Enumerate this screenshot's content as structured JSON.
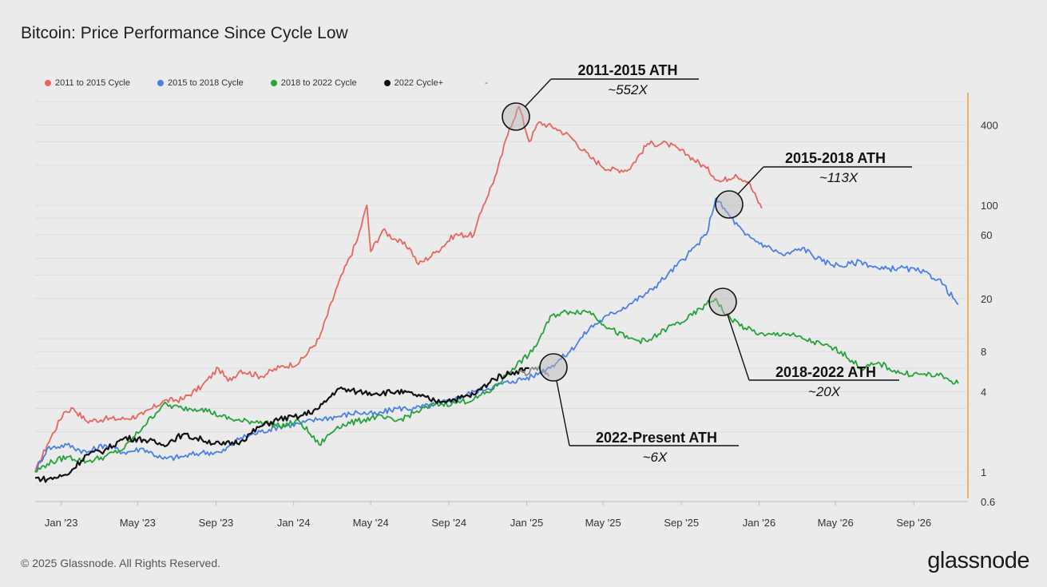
{
  "page": {
    "title": "Bitcoin: Price Performance Since Cycle Low",
    "footer": "© 2025 Glassnode. All Rights Reserved.",
    "brand": "glassnode"
  },
  "legend": {
    "items": [
      {
        "label": "2011 to 2015 Cycle",
        "color": "#e8655f"
      },
      {
        "label": "2015 to 2018 Cycle",
        "color": "#4a7fe6"
      },
      {
        "label": "2018 to 2022 Cycle",
        "color": "#23a33a"
      },
      {
        "label": "2022 Cycle+",
        "color": "#111111"
      }
    ],
    "extra": "-"
  },
  "annotations": [
    {
      "title": "2011-2015 ATH",
      "sub": "~552X"
    },
    {
      "title": "2015-2018 ATH",
      "sub": "~113X"
    },
    {
      "title": "2018-2022 ATH",
      "sub": "~20X"
    },
    {
      "title": "2022-Present ATH",
      "sub": "~6X"
    }
  ],
  "chart_data": {
    "type": "line",
    "title": "Bitcoin: Price Performance Since Cycle Low",
    "x_tick_labels": [
      "Jan '23",
      "May '23",
      "Sep '23",
      "Jan '24",
      "May '24",
      "Sep '24",
      "Jan '25",
      "May '25",
      "Sep '25",
      "Jan '26",
      "May '26",
      "Sep '26"
    ],
    "y_tick_labels": [
      "0.6",
      "1",
      "4",
      "8",
      "20",
      "60",
      "100",
      "400"
    ],
    "y_scale": "log",
    "xlim": [
      "2022-11-21",
      "2026-11-25"
    ],
    "ylim": [
      0.6,
      700
    ],
    "axis_accent_color": "#f0a030",
    "series": [
      {
        "name": "2011 to 2015 Cycle",
        "color": "#e8655f",
        "points": [
          [
            "2022-11-21",
            1.0
          ],
          [
            "2022-12-10",
            1.6
          ],
          [
            "2023-01-05",
            2.8
          ],
          [
            "2023-01-20",
            3.0
          ],
          [
            "2023-02-10",
            2.4
          ],
          [
            "2023-03-10",
            2.5
          ],
          [
            "2023-04-10",
            2.5
          ],
          [
            "2023-05-10",
            2.7
          ],
          [
            "2023-06-10",
            3.4
          ],
          [
            "2023-07-10",
            3.5
          ],
          [
            "2023-08-10",
            4.4
          ],
          [
            "2023-09-05",
            6.0
          ],
          [
            "2023-09-20",
            4.8
          ],
          [
            "2023-10-10",
            5.8
          ],
          [
            "2023-11-10",
            5.2
          ],
          [
            "2023-12-10",
            6.1
          ],
          [
            "2024-01-10",
            6.6
          ],
          [
            "2024-02-10",
            10.0
          ],
          [
            "2024-03-10",
            25.0
          ],
          [
            "2024-04-10",
            55.0
          ],
          [
            "2024-04-25",
            100.0
          ],
          [
            "2024-05-01",
            45.0
          ],
          [
            "2024-05-20",
            65.0
          ],
          [
            "2024-06-10",
            55.0
          ],
          [
            "2024-07-01",
            48.0
          ],
          [
            "2024-07-15",
            36.0
          ],
          [
            "2024-08-10",
            44.0
          ],
          [
            "2024-09-10",
            60.0
          ],
          [
            "2024-10-10",
            60.0
          ],
          [
            "2024-10-25",
            100.0
          ],
          [
            "2024-11-15",
            175.0
          ],
          [
            "2024-12-05",
            380.0
          ],
          [
            "2024-12-20",
            552.0
          ],
          [
            "2025-01-05",
            300.0
          ],
          [
            "2025-01-20",
            420.0
          ],
          [
            "2025-02-15",
            380.0
          ],
          [
            "2025-03-10",
            330.0
          ],
          [
            "2025-04-10",
            230.0
          ],
          [
            "2025-05-10",
            185.0
          ],
          [
            "2025-06-10",
            185.0
          ],
          [
            "2025-07-10",
            290.0
          ],
          [
            "2025-08-10",
            290.0
          ],
          [
            "2025-09-10",
            240.0
          ],
          [
            "2025-10-10",
            190.0
          ],
          [
            "2025-11-01",
            150.0
          ],
          [
            "2025-11-25",
            170.0
          ],
          [
            "2025-12-15",
            150.0
          ],
          [
            "2026-01-05",
            95.0
          ]
        ]
      },
      {
        "name": "2015 to 2018 Cycle",
        "color": "#4a7fe6",
        "points": [
          [
            "2022-11-21",
            1.0
          ],
          [
            "2022-12-10",
            1.5
          ],
          [
            "2023-01-10",
            1.6
          ],
          [
            "2023-02-10",
            1.4
          ],
          [
            "2023-03-10",
            1.6
          ],
          [
            "2023-04-10",
            1.4
          ],
          [
            "2023-05-10",
            1.5
          ],
          [
            "2023-06-10",
            1.25
          ],
          [
            "2023-07-10",
            1.3
          ],
          [
            "2023-08-10",
            1.4
          ],
          [
            "2023-09-10",
            1.4
          ],
          [
            "2023-10-10",
            1.8
          ],
          [
            "2023-11-10",
            2.0
          ],
          [
            "2023-12-10",
            2.2
          ],
          [
            "2024-01-10",
            2.3
          ],
          [
            "2024-02-10",
            2.5
          ],
          [
            "2024-03-10",
            2.6
          ],
          [
            "2024-04-10",
            2.8
          ],
          [
            "2024-05-10",
            2.7
          ],
          [
            "2024-06-10",
            3.0
          ],
          [
            "2024-07-10",
            3.0
          ],
          [
            "2024-08-10",
            3.2
          ],
          [
            "2024-09-10",
            3.5
          ],
          [
            "2024-10-10",
            4.0
          ],
          [
            "2024-11-10",
            4.4
          ],
          [
            "2024-12-10",
            4.8
          ],
          [
            "2025-01-10",
            5.2
          ],
          [
            "2025-02-10",
            6.3
          ],
          [
            "2025-03-10",
            8.0
          ],
          [
            "2025-04-10",
            12.0
          ],
          [
            "2025-05-10",
            15.0
          ],
          [
            "2025-06-10",
            18.0
          ],
          [
            "2025-07-10",
            22.0
          ],
          [
            "2025-08-10",
            30.0
          ],
          [
            "2025-09-10",
            42.0
          ],
          [
            "2025-10-10",
            60.0
          ],
          [
            "2025-10-25",
            113.0
          ],
          [
            "2025-11-10",
            90.0
          ],
          [
            "2025-12-10",
            60.0
          ],
          [
            "2026-01-10",
            50.0
          ],
          [
            "2026-02-10",
            42.0
          ],
          [
            "2026-03-10",
            48.0
          ],
          [
            "2026-04-10",
            38.0
          ],
          [
            "2026-05-10",
            35.0
          ],
          [
            "2026-06-10",
            38.0
          ],
          [
            "2026-07-10",
            33.0
          ],
          [
            "2026-08-10",
            34.0
          ],
          [
            "2026-09-10",
            32.0
          ],
          [
            "2026-10-10",
            28.0
          ],
          [
            "2026-11-10",
            18.0
          ]
        ]
      },
      {
        "name": "2018 to 2022 Cycle",
        "color": "#23a33a",
        "points": [
          [
            "2022-11-21",
            1.0
          ],
          [
            "2022-12-10",
            1.15
          ],
          [
            "2023-01-10",
            1.3
          ],
          [
            "2023-02-10",
            1.2
          ],
          [
            "2023-03-10",
            1.3
          ],
          [
            "2023-04-10",
            1.5
          ],
          [
            "2023-05-10",
            2.2
          ],
          [
            "2023-06-10",
            3.2
          ],
          [
            "2023-07-10",
            3.0
          ],
          [
            "2023-08-10",
            3.0
          ],
          [
            "2023-09-10",
            2.6
          ],
          [
            "2023-10-10",
            2.4
          ],
          [
            "2023-11-10",
            2.4
          ],
          [
            "2023-12-10",
            2.2
          ],
          [
            "2024-01-10",
            2.4
          ],
          [
            "2024-02-10",
            1.6
          ],
          [
            "2024-03-10",
            2.2
          ],
          [
            "2024-04-10",
            2.4
          ],
          [
            "2024-05-10",
            2.6
          ],
          [
            "2024-06-10",
            2.4
          ],
          [
            "2024-07-10",
            2.8
          ],
          [
            "2024-08-10",
            3.2
          ],
          [
            "2024-09-10",
            3.3
          ],
          [
            "2024-10-10",
            3.5
          ],
          [
            "2024-11-10",
            4.2
          ],
          [
            "2024-12-10",
            6.0
          ],
          [
            "2025-01-10",
            8.0
          ],
          [
            "2025-02-10",
            15.0
          ],
          [
            "2025-03-10",
            16.0
          ],
          [
            "2025-04-10",
            16.0
          ],
          [
            "2025-05-10",
            12.0
          ],
          [
            "2025-06-10",
            10.0
          ],
          [
            "2025-07-10",
            9.5
          ],
          [
            "2025-08-10",
            12.0
          ],
          [
            "2025-09-10",
            14.0
          ],
          [
            "2025-10-10",
            18.0
          ],
          [
            "2025-10-25",
            20.0
          ],
          [
            "2025-11-10",
            15.0
          ],
          [
            "2025-12-10",
            12.0
          ],
          [
            "2026-01-10",
            10.5
          ],
          [
            "2026-02-10",
            11.0
          ],
          [
            "2026-03-10",
            10.0
          ],
          [
            "2026-04-10",
            9.0
          ],
          [
            "2026-05-10",
            8.0
          ],
          [
            "2026-06-10",
            6.0
          ],
          [
            "2026-07-10",
            6.5
          ],
          [
            "2026-08-10",
            5.5
          ],
          [
            "2026-09-10",
            5.4
          ],
          [
            "2026-10-10",
            5.3
          ],
          [
            "2026-11-10",
            4.6
          ]
        ]
      },
      {
        "name": "2022 Cycle+",
        "color": "#111111",
        "points": [
          [
            "2022-11-21",
            0.9
          ],
          [
            "2022-12-10",
            0.88
          ],
          [
            "2023-01-10",
            0.95
          ],
          [
            "2023-02-10",
            1.35
          ],
          [
            "2023-03-10",
            1.45
          ],
          [
            "2023-04-10",
            1.8
          ],
          [
            "2023-05-10",
            1.75
          ],
          [
            "2023-06-10",
            1.6
          ],
          [
            "2023-07-10",
            1.9
          ],
          [
            "2023-08-10",
            1.75
          ],
          [
            "2023-09-10",
            1.6
          ],
          [
            "2023-10-10",
            1.7
          ],
          [
            "2023-11-10",
            2.2
          ],
          [
            "2023-12-10",
            2.5
          ],
          [
            "2024-01-10",
            2.6
          ],
          [
            "2024-02-10",
            3.0
          ],
          [
            "2024-03-10",
            4.2
          ],
          [
            "2024-04-10",
            4.0
          ],
          [
            "2024-05-10",
            3.9
          ],
          [
            "2024-06-10",
            4.0
          ],
          [
            "2024-07-10",
            3.8
          ],
          [
            "2024-08-10",
            3.4
          ],
          [
            "2024-09-10",
            3.5
          ],
          [
            "2024-10-10",
            3.8
          ],
          [
            "2024-11-10",
            5.0
          ],
          [
            "2024-12-10",
            5.6
          ],
          [
            "2025-01-05",
            6.0
          ]
        ]
      },
      {
        "name": "2022 Cycle+",
        "color": "#8a8a8a",
        "points": [
          [
            "2024-12-20",
            5.6
          ],
          [
            "2025-01-05",
            5.5
          ],
          [
            "2025-01-15",
            6.1
          ],
          [
            "2025-01-25",
            5.6
          ],
          [
            "2025-02-05",
            5.2
          ]
        ]
      }
    ]
  }
}
